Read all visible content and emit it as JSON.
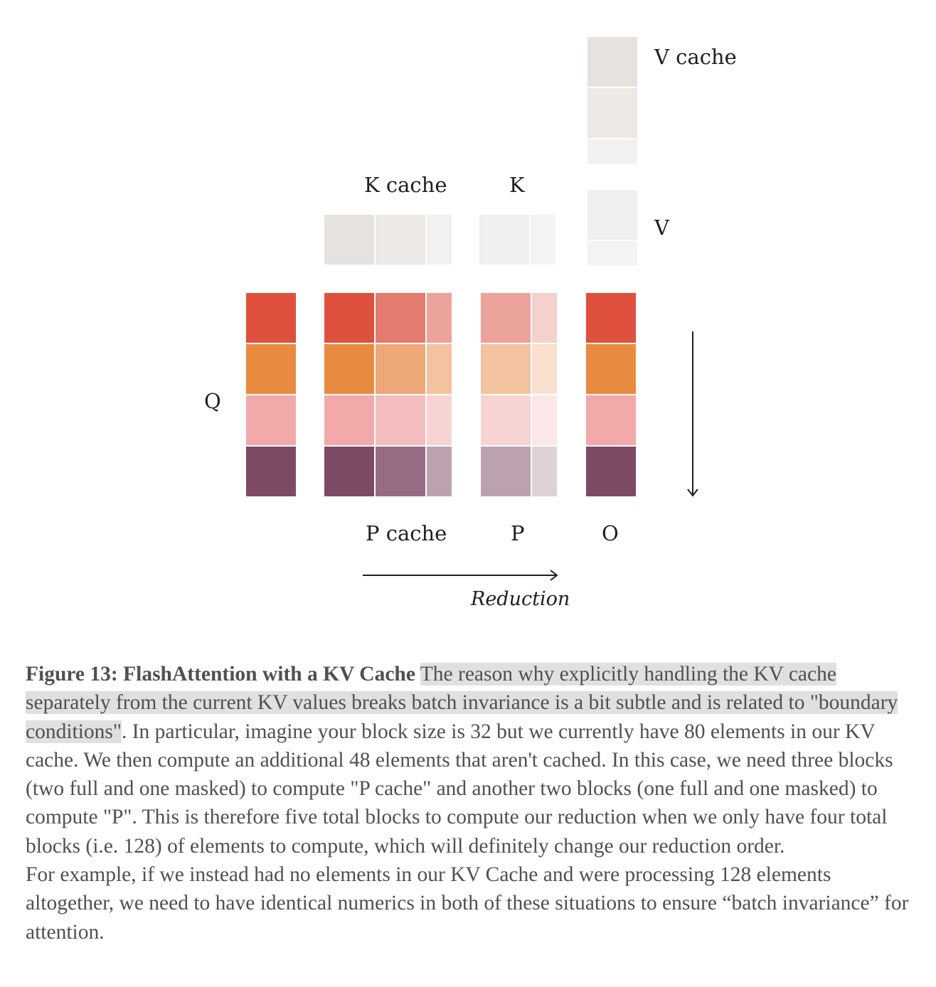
{
  "diagram": {
    "labels": {
      "v_cache": "V cache",
      "k_cache": "K cache",
      "k": "K",
      "v": "V",
      "q": "Q",
      "p_cache": "P cache",
      "p": "P",
      "o": "O",
      "reduction": "Reduction"
    },
    "colors": {
      "red": "#df503e",
      "orange": "#e88b40",
      "pink": "#f1aaa9",
      "plum": "#7d4a65",
      "gray_block": "#e6e2df",
      "gray_light": "#f1efed",
      "gray_lighter": "#f4f2f1"
    }
  },
  "caption": {
    "title": "Figure 13: FlashAttention with a KV Cache",
    "highlighted": "The reason why explicitly handling the KV cache separately from the current KV values breaks batch invariance is a bit subtle and is related to \"boundary conditions\"",
    "rest": ". In particular, imagine your block size is 32 but we currently have 80 elements in our KV cache. We then compute an additional 48 elements that aren't cached. In this case, we need three blocks (two full and one masked) to compute \"P cache\" and another two blocks (one full and one masked) to compute \"P\". This is therefore five total blocks to compute our reduction when we only have four total blocks (i.e. 128) of elements to compute, which will definitely change our reduction order.",
    "paragraph2": "For example, if we instead had no elements in our KV Cache and were processing 128 elements altogether, we need to have identical numerics in both of these situations to ensure “batch invariance” for attention."
  }
}
